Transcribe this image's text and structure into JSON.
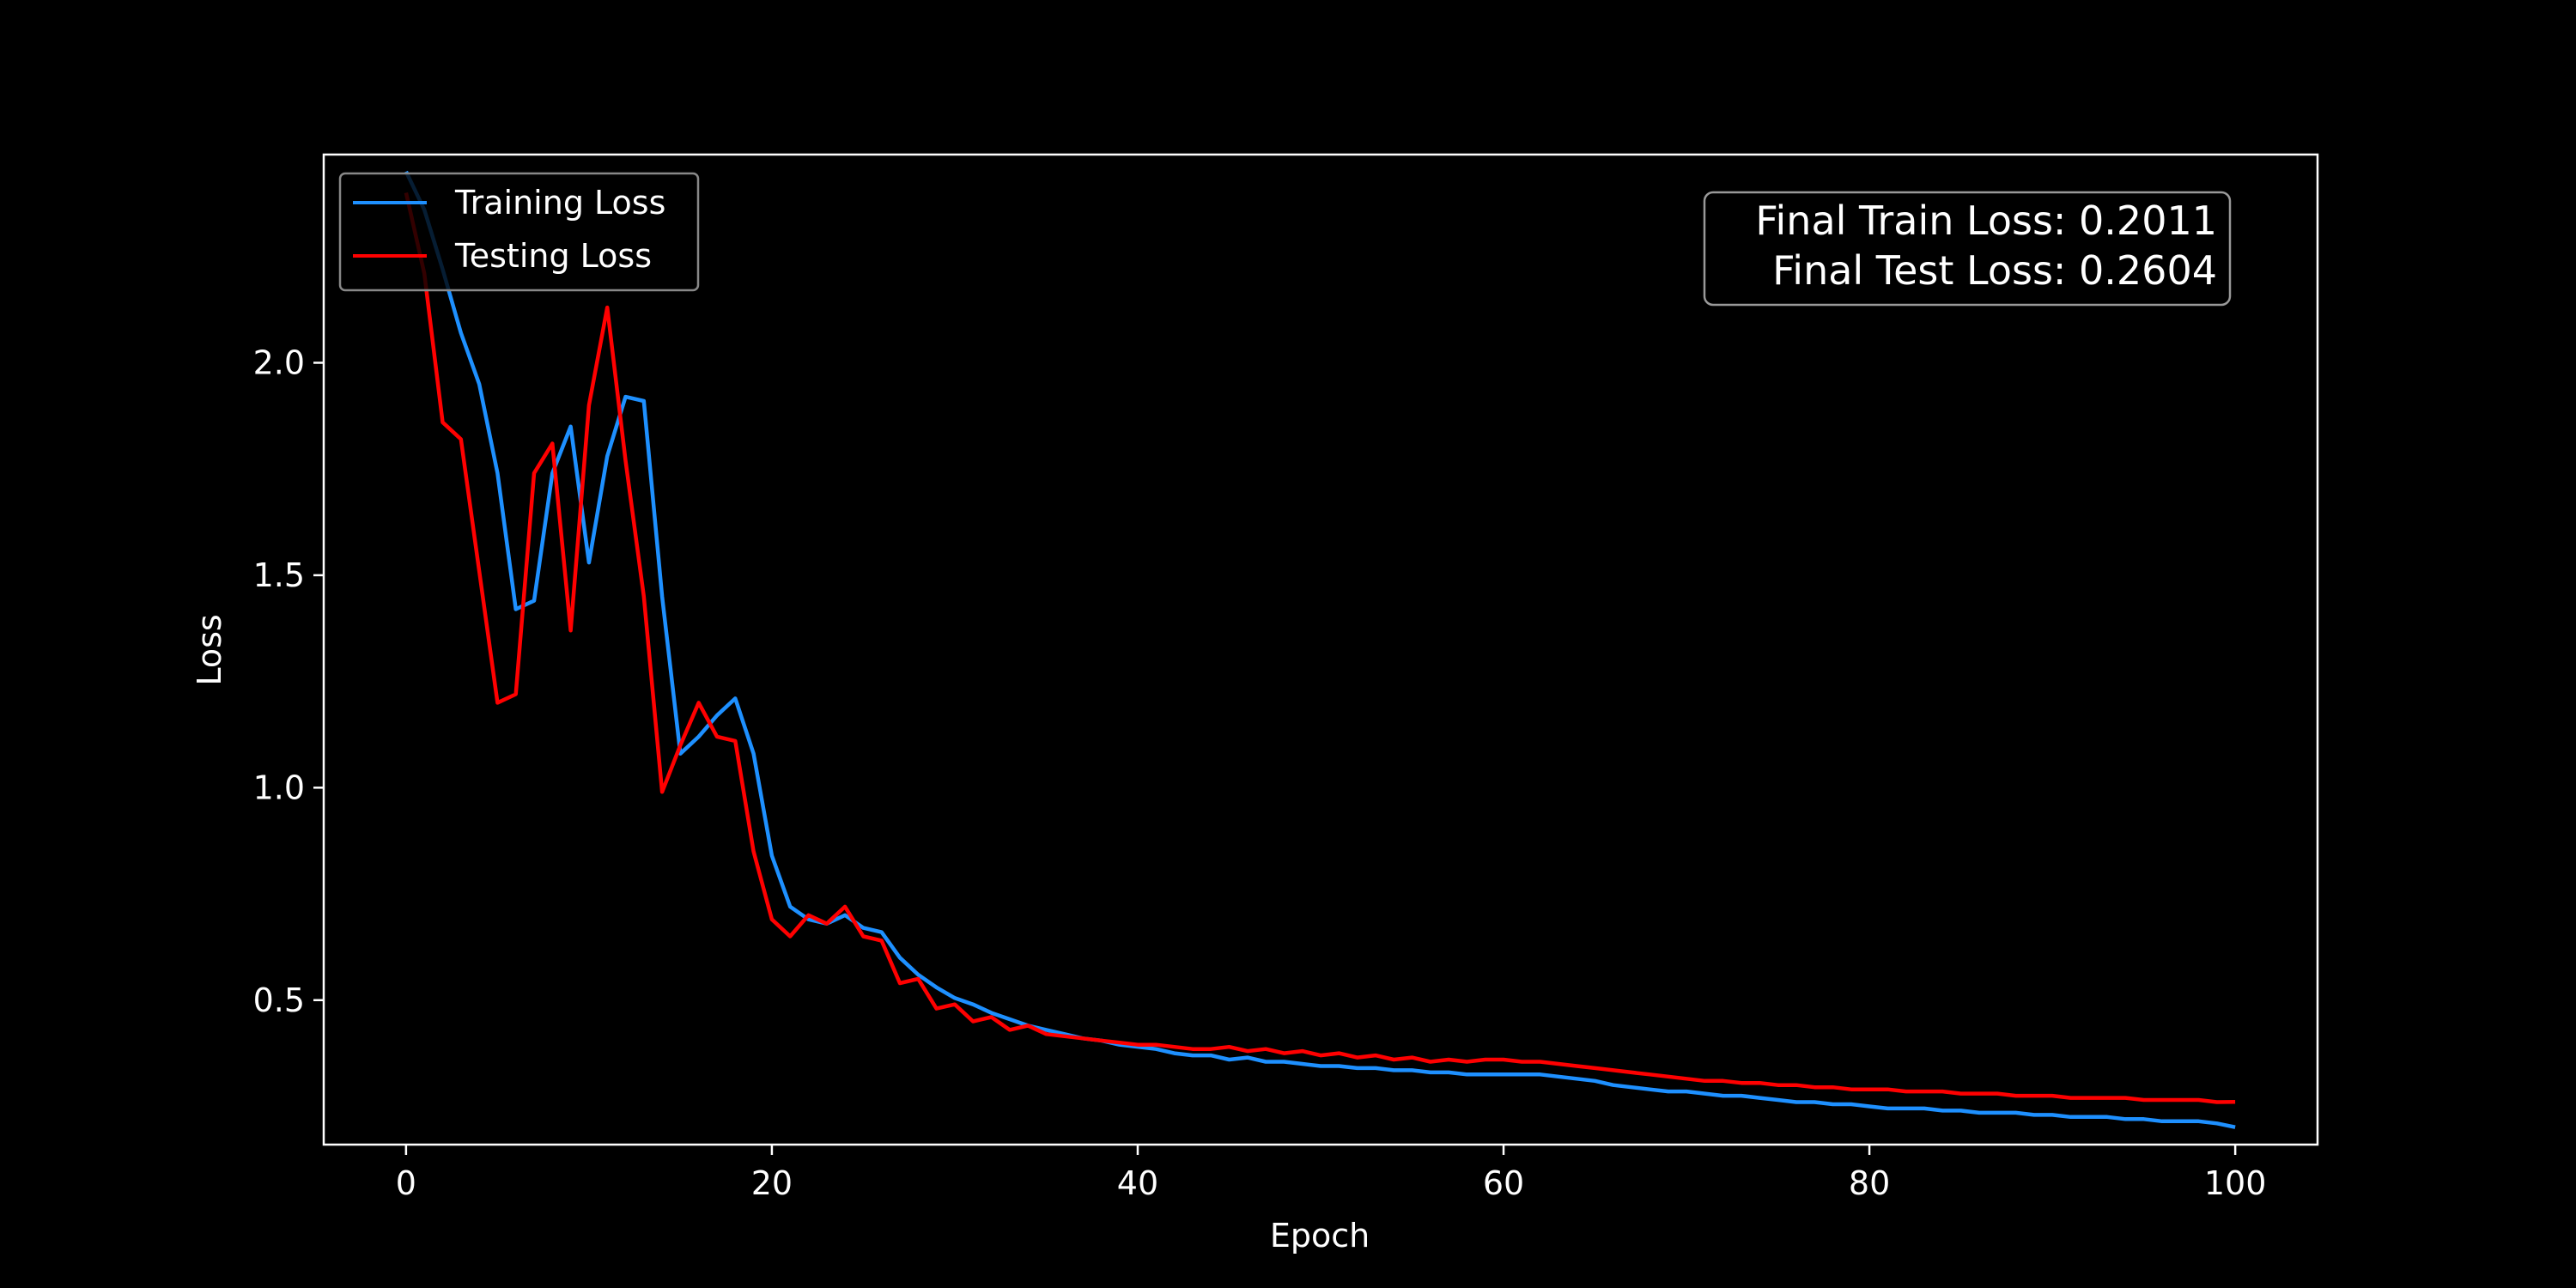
{
  "chart_data": {
    "type": "line",
    "title": "",
    "xlabel": "Epoch",
    "ylabel": "Loss",
    "xlim": [
      -4.5,
      104.5
    ],
    "ylim": [
      0.16,
      2.49
    ],
    "x_ticks": [
      0,
      20,
      40,
      60,
      80,
      100
    ],
    "x_tick_labels": [
      "0",
      "20",
      "40",
      "60",
      "80",
      "100"
    ],
    "y_ticks": [
      0.5,
      1.0,
      1.5,
      2.0
    ],
    "y_tick_labels": [
      "0.5",
      "1.0",
      "1.5",
      "2.0"
    ],
    "grid": false,
    "legend_position": "upper-left",
    "annotation": [
      "Final Train Loss: 0.2011",
      "Final Test Loss: 0.2604"
    ],
    "annotation_position": "upper-right",
    "background": "#000000",
    "series": [
      {
        "name": "Training Loss",
        "color": "#1e90ff",
        "x": [
          0,
          1,
          2,
          3,
          4,
          5,
          6,
          7,
          8,
          9,
          10,
          11,
          12,
          13,
          14,
          15,
          16,
          17,
          18,
          19,
          20,
          21,
          22,
          23,
          24,
          25,
          26,
          27,
          28,
          29,
          30,
          31,
          32,
          33,
          34,
          35,
          36,
          37,
          38,
          39,
          40,
          41,
          42,
          43,
          44,
          45,
          46,
          47,
          48,
          49,
          50,
          51,
          52,
          53,
          54,
          55,
          56,
          57,
          58,
          59,
          60,
          61,
          62,
          63,
          64,
          65,
          66,
          67,
          68,
          69,
          70,
          71,
          72,
          73,
          74,
          75,
          76,
          77,
          78,
          79,
          80,
          81,
          82,
          83,
          84,
          85,
          86,
          87,
          88,
          89,
          90,
          91,
          92,
          93,
          94,
          95,
          96,
          97,
          98,
          99,
          100
        ],
        "values": [
          2.45,
          2.36,
          2.22,
          2.07,
          1.95,
          1.74,
          1.42,
          1.44,
          1.74,
          1.85,
          1.53,
          1.78,
          1.92,
          1.91,
          1.45,
          1.08,
          1.12,
          1.17,
          1.21,
          1.08,
          0.84,
          0.72,
          0.69,
          0.68,
          0.7,
          0.67,
          0.66,
          0.6,
          0.56,
          0.53,
          0.505,
          0.49,
          0.47,
          0.455,
          0.44,
          0.43,
          0.42,
          0.41,
          0.405,
          0.395,
          0.39,
          0.385,
          0.375,
          0.37,
          0.37,
          0.36,
          0.365,
          0.355,
          0.355,
          0.35,
          0.345,
          0.345,
          0.34,
          0.34,
          0.335,
          0.335,
          0.33,
          0.33,
          0.325,
          0.325,
          0.325,
          0.325,
          0.325,
          0.32,
          0.315,
          0.31,
          0.3,
          0.295,
          0.29,
          0.285,
          0.285,
          0.28,
          0.275,
          0.275,
          0.27,
          0.265,
          0.26,
          0.26,
          0.255,
          0.255,
          0.25,
          0.245,
          0.245,
          0.245,
          0.24,
          0.24,
          0.235,
          0.235,
          0.235,
          0.23,
          0.23,
          0.225,
          0.225,
          0.225,
          0.22,
          0.22,
          0.215,
          0.215,
          0.215,
          0.21,
          0.2011
        ]
      },
      {
        "name": "Testing Loss",
        "color": "#ff0000",
        "x": [
          0,
          1,
          2,
          3,
          4,
          5,
          6,
          7,
          8,
          9,
          10,
          11,
          12,
          13,
          14,
          15,
          16,
          17,
          18,
          19,
          20,
          21,
          22,
          23,
          24,
          25,
          26,
          27,
          28,
          29,
          30,
          31,
          32,
          33,
          34,
          35,
          36,
          37,
          38,
          39,
          40,
          41,
          42,
          43,
          44,
          45,
          46,
          47,
          48,
          49,
          50,
          51,
          52,
          53,
          54,
          55,
          56,
          57,
          58,
          59,
          60,
          61,
          62,
          63,
          64,
          65,
          66,
          67,
          68,
          69,
          70,
          71,
          72,
          73,
          74,
          75,
          76,
          77,
          78,
          79,
          80,
          81,
          82,
          83,
          84,
          85,
          86,
          87,
          88,
          89,
          90,
          91,
          92,
          93,
          94,
          95,
          96,
          97,
          98,
          99,
          100
        ],
        "values": [
          2.4,
          2.21,
          1.86,
          1.82,
          1.51,
          1.2,
          1.22,
          1.74,
          1.81,
          1.37,
          1.9,
          2.13,
          1.77,
          1.45,
          0.99,
          1.1,
          1.2,
          1.12,
          1.11,
          0.85,
          0.69,
          0.65,
          0.7,
          0.68,
          0.72,
          0.65,
          0.64,
          0.54,
          0.55,
          0.48,
          0.49,
          0.45,
          0.46,
          0.43,
          0.44,
          0.42,
          0.415,
          0.41,
          0.405,
          0.4,
          0.395,
          0.395,
          0.39,
          0.385,
          0.385,
          0.39,
          0.38,
          0.385,
          0.375,
          0.38,
          0.37,
          0.375,
          0.365,
          0.37,
          0.36,
          0.365,
          0.355,
          0.36,
          0.355,
          0.36,
          0.36,
          0.355,
          0.355,
          0.35,
          0.345,
          0.34,
          0.335,
          0.33,
          0.325,
          0.32,
          0.315,
          0.31,
          0.31,
          0.305,
          0.305,
          0.3,
          0.3,
          0.295,
          0.295,
          0.29,
          0.29,
          0.29,
          0.285,
          0.285,
          0.285,
          0.28,
          0.28,
          0.28,
          0.275,
          0.275,
          0.275,
          0.27,
          0.27,
          0.27,
          0.27,
          0.265,
          0.265,
          0.265,
          0.265,
          0.26,
          0.2604
        ]
      }
    ]
  }
}
